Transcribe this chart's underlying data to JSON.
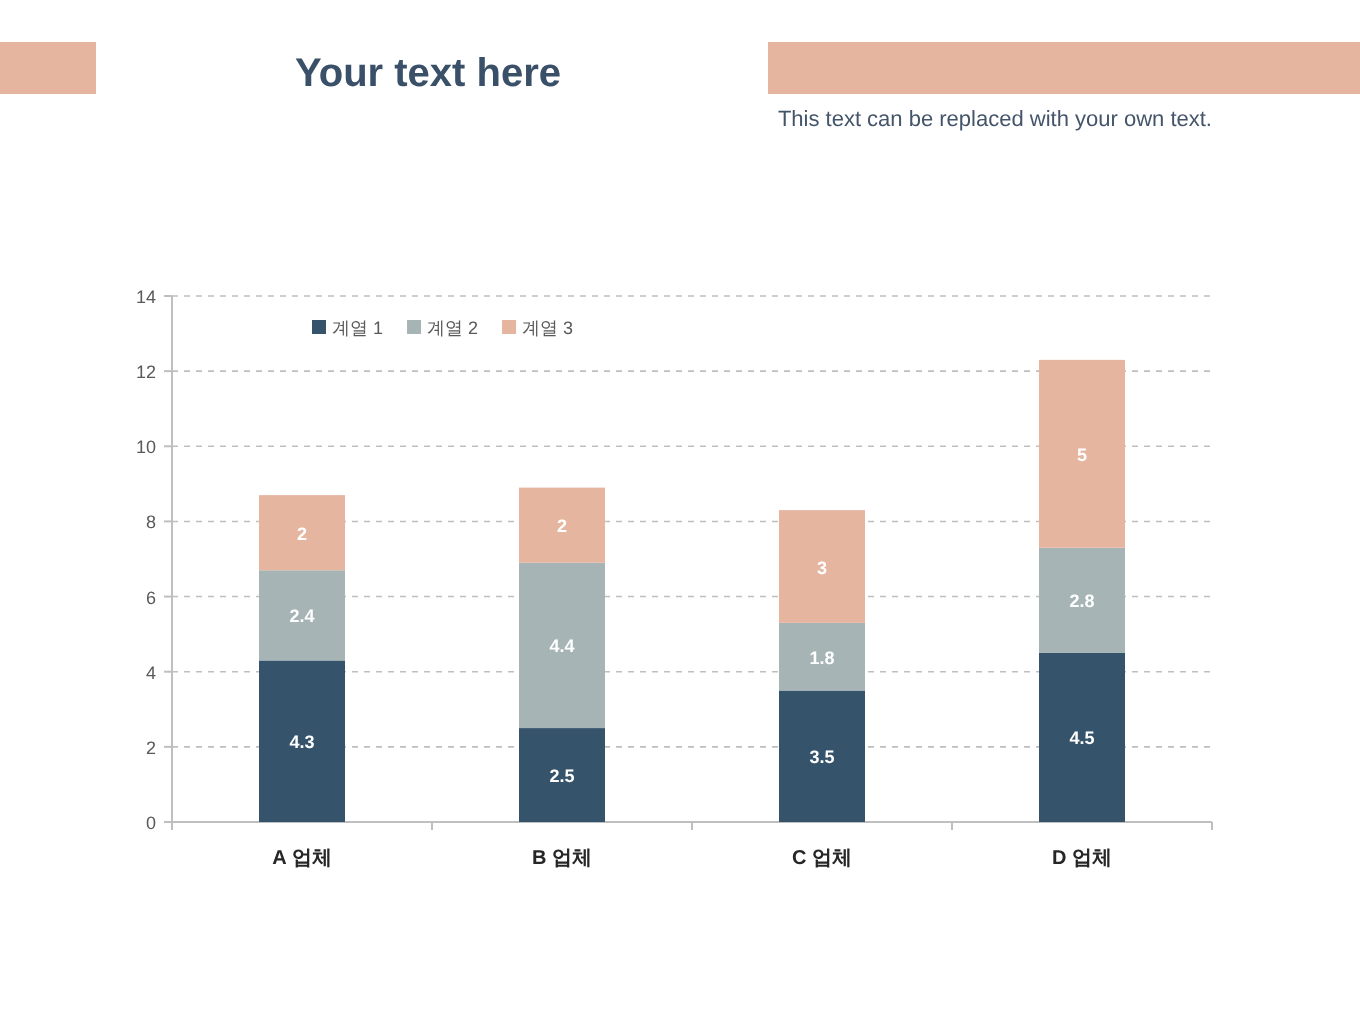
{
  "chart_data": {
    "type": "bar",
    "title": "Your text here",
    "subtitle": "This text can be replaced with your own text.",
    "categories": [
      "A 업체",
      "B 업체",
      "C 업체",
      "D 업체"
    ],
    "stacked": true,
    "series": [
      {
        "name": "계열 1",
        "color": "#35536b",
        "values": [
          4.3,
          2.5,
          3.5,
          4.5
        ]
      },
      {
        "name": "계열 2",
        "color": "#a7b4b6",
        "values": [
          2.4,
          4.4,
          1.8,
          2.8
        ]
      },
      {
        "name": "계열 3",
        "color": "#e6b5a0",
        "values": [
          2,
          2,
          3,
          5
        ]
      }
    ],
    "ylim": [
      0,
      14
    ],
    "yticks": [
      0,
      2,
      4,
      6,
      8,
      10,
      12,
      14
    ],
    "grid": "y",
    "legend": "top left",
    "data_labels": true
  }
}
